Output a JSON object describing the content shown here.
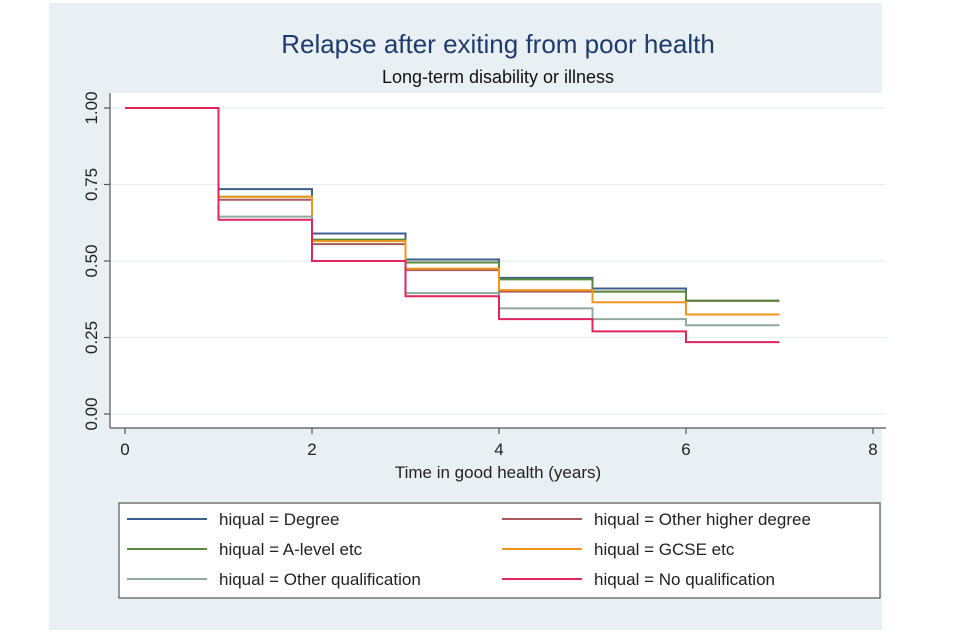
{
  "chart_data": {
    "type": "line",
    "step": true,
    "title": "Relapse after exiting from poor health",
    "subtitle": "Long-term disability or illness",
    "xlabel": "Time in good health (years)",
    "ylabel": "",
    "xlim": [
      0,
      8
    ],
    "ylim": [
      0,
      1
    ],
    "xticks": [
      0,
      2,
      4,
      6,
      8
    ],
    "xtick_labels": [
      "0",
      "2",
      "4",
      "6",
      "8"
    ],
    "yticks": [
      0,
      0.25,
      0.5,
      0.75,
      1
    ],
    "ytick_labels": [
      "0.00",
      "0.25",
      "0.50",
      "0.75",
      "1.00"
    ],
    "grid": true,
    "legend_position": "bottom",
    "x": [
      0,
      1,
      2,
      3,
      4,
      5,
      6,
      7
    ],
    "series": [
      {
        "name": "hiqual = Degree",
        "color": "#3d5f8f",
        "values": [
          1.0,
          0.735,
          0.59,
          0.505,
          0.445,
          0.41,
          0.37,
          0.37
        ]
      },
      {
        "name": "hiqual = Other higher degree",
        "color": "#a85a5a",
        "values": [
          1.0,
          0.7,
          0.555,
          0.47,
          0.4,
          0.4,
          0.37,
          0.37
        ]
      },
      {
        "name": "hiqual = A-level etc",
        "color": "#5a8a3a",
        "values": [
          1.0,
          0.71,
          0.57,
          0.495,
          0.44,
          0.4,
          0.37,
          0.37
        ]
      },
      {
        "name": "hiqual = GCSE etc",
        "color": "#f0961e",
        "values": [
          1.0,
          0.71,
          0.565,
          0.475,
          0.405,
          0.365,
          0.325,
          0.325
        ]
      },
      {
        "name": "hiqual = Other qualification",
        "color": "#8faa9c",
        "values": [
          1.0,
          0.645,
          0.5,
          0.395,
          0.345,
          0.31,
          0.29,
          0.29
        ]
      },
      {
        "name": "hiqual = No qualification",
        "color": "#e0245e",
        "values": [
          1.0,
          0.635,
          0.5,
          0.385,
          0.31,
          0.27,
          0.235,
          0.235
        ]
      }
    ]
  }
}
